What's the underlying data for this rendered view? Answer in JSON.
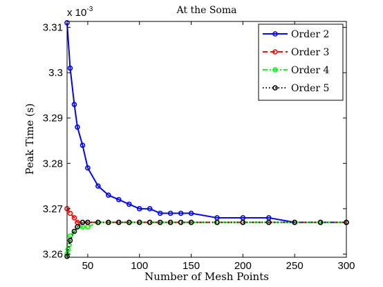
{
  "chart_data": {
    "type": "line",
    "title": "At the Soma",
    "xlabel": "Number of Mesh Points",
    "ylabel": "Peak Time (s)",
    "y_multiplier": "x 10",
    "y_exponent": "-3",
    "xlim": [
      30,
      300
    ],
    "ylim": [
      3.2593,
      3.3113
    ],
    "x_ticks": [
      50,
      100,
      150,
      200,
      250,
      300
    ],
    "x_tick_labels": [
      "50",
      "100",
      "150",
      "200",
      "250",
      "300"
    ],
    "y_ticks": [
      3.26,
      3.27,
      3.28,
      3.29,
      3.3,
      3.31
    ],
    "y_tick_labels": [
      "3.26",
      "3.27",
      "3.28",
      "3.29",
      "3.3",
      "3.31"
    ],
    "grid": false,
    "legend_position": "top-right",
    "series": [
      {
        "name": "Order 2",
        "color": "#0000ff",
        "dash": "solid",
        "x": [
          30,
          33,
          37,
          40,
          45,
          50,
          60,
          70,
          80,
          90,
          100,
          110,
          120,
          130,
          140,
          150,
          175,
          200,
          225,
          250,
          275,
          300
        ],
        "y": [
          3.311,
          3.301,
          3.293,
          3.288,
          3.284,
          3.279,
          3.275,
          3.273,
          3.272,
          3.271,
          3.27,
          3.27,
          3.269,
          3.269,
          3.269,
          3.269,
          3.268,
          3.268,
          3.268,
          3.267,
          3.267,
          3.267
        ]
      },
      {
        "name": "Order 3",
        "color": "#ff0000",
        "dash": "dashed",
        "x": [
          30,
          33,
          37,
          40,
          45,
          50,
          60,
          70,
          80,
          90,
          100,
          110,
          120,
          130,
          140,
          150,
          175,
          200,
          225,
          250,
          275,
          300
        ],
        "y": [
          3.27,
          3.269,
          3.268,
          3.267,
          3.267,
          3.267,
          3.267,
          3.267,
          3.267,
          3.267,
          3.267,
          3.267,
          3.267,
          3.267,
          3.267,
          3.267,
          3.267,
          3.267,
          3.267,
          3.267,
          3.267,
          3.267
        ]
      },
      {
        "name": "Order 4",
        "color": "#00ff00",
        "dash": "dashdot",
        "x": [
          30,
          31,
          32,
          33,
          37,
          40,
          45,
          50,
          60,
          70,
          80,
          90,
          100,
          110,
          120,
          130,
          140,
          150,
          175,
          200,
          225,
          250,
          275,
          300
        ],
        "y": [
          3.26,
          3.261,
          3.262,
          3.264,
          3.265,
          3.266,
          3.266,
          3.266,
          3.267,
          3.267,
          3.267,
          3.267,
          3.267,
          3.267,
          3.267,
          3.267,
          3.267,
          3.267,
          3.267,
          3.267,
          3.267,
          3.267,
          3.267,
          3.267
        ]
      },
      {
        "name": "Order 5",
        "color": "#000000",
        "dash": "dotted",
        "x": [
          30,
          33,
          37,
          40,
          45,
          50,
          60,
          70,
          80,
          90,
          100,
          110,
          120,
          130,
          140,
          150,
          175,
          200,
          225,
          250,
          275,
          300
        ],
        "y": [
          3.2595,
          3.263,
          3.265,
          3.266,
          3.267,
          3.267,
          3.267,
          3.267,
          3.267,
          3.267,
          3.267,
          3.267,
          3.267,
          3.267,
          3.267,
          3.267,
          3.267,
          3.267,
          3.267,
          3.267,
          3.267,
          3.267
        ]
      }
    ]
  }
}
